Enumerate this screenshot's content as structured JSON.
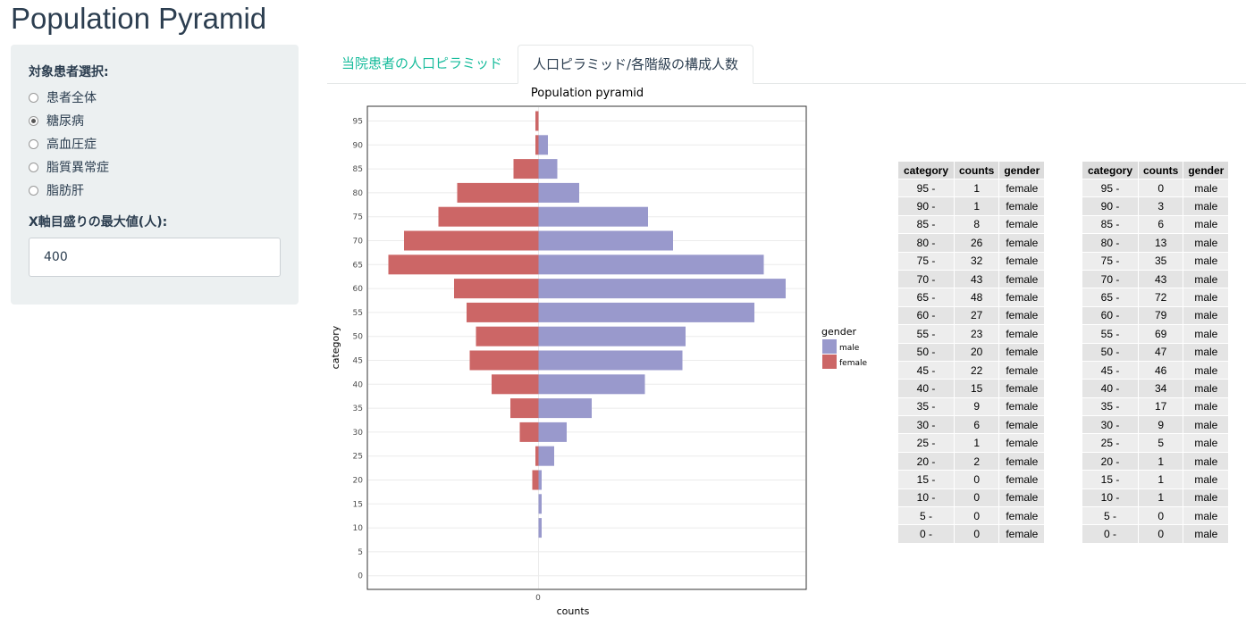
{
  "app_title": "Population Pyramid",
  "sidebar": {
    "patient_label": "対象患者選択:",
    "options": [
      {
        "label": "患者全体",
        "checked": false
      },
      {
        "label": "糖尿病",
        "checked": true
      },
      {
        "label": "高血圧症",
        "checked": false
      },
      {
        "label": "脂質異常症",
        "checked": false
      },
      {
        "label": "脂肪肝",
        "checked": false
      }
    ],
    "max_label": "X軸目盛りの最大値(人):",
    "max_value": "400"
  },
  "tabs": [
    {
      "label": "当院患者の人口ピラミッド",
      "active": false
    },
    {
      "label": "人口ピラミッド/各階級の構成人数",
      "active": true
    }
  ],
  "chart_data": {
    "type": "bar",
    "title": "Population pyramid",
    "xlabel": "counts",
    "ylabel": "category",
    "x_tick": "0",
    "categories": [
      "0",
      "5",
      "10",
      "15",
      "20",
      "25",
      "30",
      "35",
      "40",
      "45",
      "50",
      "55",
      "60",
      "65",
      "70",
      "75",
      "80",
      "85",
      "90",
      "95"
    ],
    "series": [
      {
        "name": "male",
        "color": "#9999cc",
        "values": [
          0,
          0,
          1,
          1,
          1,
          5,
          9,
          17,
          34,
          46,
          47,
          69,
          79,
          72,
          43,
          35,
          13,
          6,
          3,
          0
        ]
      },
      {
        "name": "female",
        "color": "#cc6666",
        "values": [
          0,
          0,
          0,
          0,
          2,
          1,
          6,
          9,
          15,
          22,
          20,
          23,
          27,
          48,
          43,
          32,
          26,
          8,
          1,
          1
        ]
      }
    ],
    "legend_title": "gender",
    "legend_position": "right",
    "grid": true
  },
  "tables": {
    "headers": [
      "category",
      "counts",
      "gender"
    ],
    "female": [
      [
        "95 -",
        "1",
        "female"
      ],
      [
        "90 -",
        "1",
        "female"
      ],
      [
        "85 -",
        "8",
        "female"
      ],
      [
        "80 -",
        "26",
        "female"
      ],
      [
        "75 -",
        "32",
        "female"
      ],
      [
        "70 -",
        "43",
        "female"
      ],
      [
        "65 -",
        "48",
        "female"
      ],
      [
        "60 -",
        "27",
        "female"
      ],
      [
        "55 -",
        "23",
        "female"
      ],
      [
        "50 -",
        "20",
        "female"
      ],
      [
        "45 -",
        "22",
        "female"
      ],
      [
        "40 -",
        "15",
        "female"
      ],
      [
        "35 -",
        "9",
        "female"
      ],
      [
        "30 -",
        "6",
        "female"
      ],
      [
        "25 -",
        "1",
        "female"
      ],
      [
        "20 -",
        "2",
        "female"
      ],
      [
        "15 -",
        "0",
        "female"
      ],
      [
        "10 -",
        "0",
        "female"
      ],
      [
        "5 -",
        "0",
        "female"
      ],
      [
        "0 -",
        "0",
        "female"
      ]
    ],
    "male": [
      [
        "95 -",
        "0",
        "male"
      ],
      [
        "90 -",
        "3",
        "male"
      ],
      [
        "85 -",
        "6",
        "male"
      ],
      [
        "80 -",
        "13",
        "male"
      ],
      [
        "75 -",
        "35",
        "male"
      ],
      [
        "70 -",
        "43",
        "male"
      ],
      [
        "65 -",
        "72",
        "male"
      ],
      [
        "60 -",
        "79",
        "male"
      ],
      [
        "55 -",
        "69",
        "male"
      ],
      [
        "50 -",
        "47",
        "male"
      ],
      [
        "45 -",
        "46",
        "male"
      ],
      [
        "40 -",
        "34",
        "male"
      ],
      [
        "35 -",
        "17",
        "male"
      ],
      [
        "30 -",
        "9",
        "male"
      ],
      [
        "25 -",
        "5",
        "male"
      ],
      [
        "20 -",
        "1",
        "male"
      ],
      [
        "15 -",
        "1",
        "male"
      ],
      [
        "10 -",
        "1",
        "male"
      ],
      [
        "5 -",
        "0",
        "male"
      ],
      [
        "0 -",
        "0",
        "male"
      ]
    ]
  }
}
